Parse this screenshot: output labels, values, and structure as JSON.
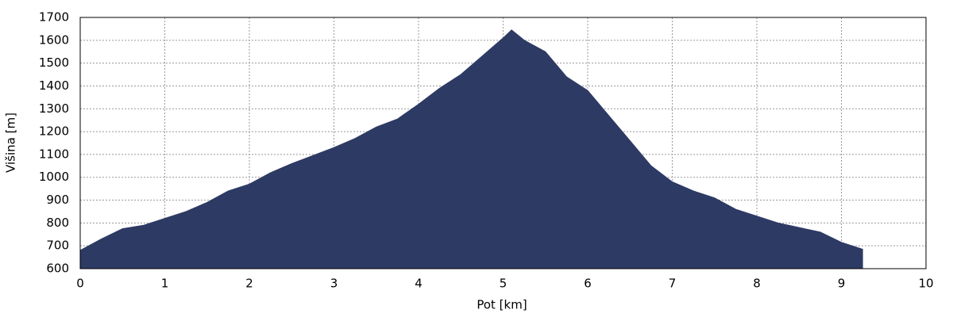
{
  "chart_data": {
    "type": "area",
    "x_label": "Pot [km]",
    "y_label": "Višina [m]",
    "x": [
      0,
      0.25,
      0.5,
      0.75,
      1.0,
      1.25,
      1.5,
      1.75,
      2.0,
      2.25,
      2.5,
      2.75,
      3.0,
      3.25,
      3.5,
      3.75,
      4.0,
      4.25,
      4.5,
      4.75,
      5.0,
      5.1,
      5.25,
      5.5,
      5.75,
      6.0,
      6.25,
      6.5,
      6.75,
      7.0,
      7.25,
      7.5,
      7.75,
      8.0,
      8.25,
      8.5,
      8.75,
      9.0,
      9.25
    ],
    "values": [
      680,
      730,
      775,
      790,
      820,
      850,
      890,
      940,
      970,
      1020,
      1060,
      1095,
      1130,
      1170,
      1220,
      1255,
      1320,
      1390,
      1450,
      1530,
      1610,
      1645,
      1600,
      1550,
      1440,
      1380,
      1270,
      1160,
      1050,
      980,
      940,
      910,
      860,
      830,
      800,
      780,
      760,
      715,
      685
    ],
    "color": "#2d3a64",
    "xlim": [
      0,
      10
    ],
    "xticks": [
      0,
      1,
      2,
      3,
      4,
      5,
      6,
      7,
      8,
      9,
      10
    ],
    "ylim": [
      600,
      1700
    ],
    "yticks": [
      600,
      700,
      800,
      900,
      1000,
      1100,
      1200,
      1300,
      1400,
      1500,
      1600,
      1700
    ],
    "grid": true
  }
}
